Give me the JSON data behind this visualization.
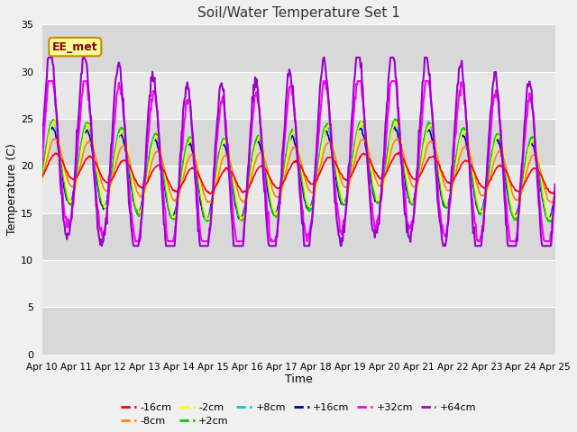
{
  "title": "Soil/Water Temperature Set 1",
  "xlabel": "Time",
  "ylabel": "Temperature (C)",
  "annotation": "EE_met",
  "xlim_days": [
    0,
    15
  ],
  "ylim": [
    0,
    35
  ],
  "yticks": [
    0,
    5,
    10,
    15,
    20,
    25,
    30,
    35
  ],
  "x_labels": [
    "Apr 10",
    "Apr 11",
    "Apr 12",
    "Apr 13",
    "Apr 14",
    "Apr 15",
    "Apr 16",
    "Apr 17",
    "Apr 18",
    "Apr 19",
    "Apr 20",
    "Apr 21",
    "Apr 22",
    "Apr 23",
    "Apr 24",
    "Apr 25"
  ],
  "series": {
    "-16cm": {
      "color": "#ff0000",
      "lw": 1.2,
      "zorder": 5
    },
    "-8cm": {
      "color": "#ff8800",
      "lw": 1.2,
      "zorder": 4
    },
    "-2cm": {
      "color": "#ffff00",
      "lw": 1.2,
      "zorder": 3
    },
    "+2cm": {
      "color": "#00cc00",
      "lw": 1.2,
      "zorder": 3
    },
    "+8cm": {
      "color": "#00cccc",
      "lw": 1.2,
      "zorder": 3
    },
    "+16cm": {
      "color": "#000099",
      "lw": 1.2,
      "zorder": 3
    },
    "+32cm": {
      "color": "#ff00ff",
      "lw": 1.5,
      "zorder": 6
    },
    "+64cm": {
      "color": "#9900cc",
      "lw": 1.5,
      "zorder": 7
    }
  },
  "fig_bg": "#f0f0f0",
  "plot_bg": "#e0e0e0",
  "band_colors": [
    "#d8d8d8",
    "#e8e8e8"
  ],
  "grid_color": "#ffffff"
}
